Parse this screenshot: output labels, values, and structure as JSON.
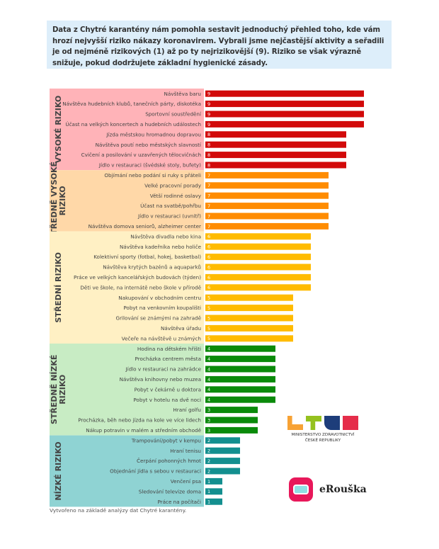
{
  "intro_text": "Data z Chytré karantény nám pomohla sestavit jednoduchý přehled toho, kde vám hrozí nejvyšší riziko nákazy koronavirem. Vybrali jsme nejčastější aktivity a seřadili je od nejméně rizikových (1) až po ty nejrizikovější (9). Riziko se však výrazně snižuje, pokud dodržujete základní hygienické zásady.",
  "footer_note": "Vytvořeno na základě analýzy dat Chytré karantény.",
  "logos": {
    "ministry": "MINISTERSTVO ZDRAVOTNICTVÍ ČESKÉ REPUBLIKY",
    "ministry_line1": "MINISTERSTVO ZDRAVOTNICTVÍ",
    "ministry_line2": "ČESKÉ REPUBLIKY",
    "app_name": "eRouška"
  },
  "chart_data": {
    "type": "bar",
    "orientation": "horizontal",
    "title": "",
    "xlabel": "",
    "ylabel": "",
    "xlim": [
      0,
      9
    ],
    "grid": false,
    "groups": [
      {
        "name": "VYSOKÉ RIZIKO",
        "name_lines": [
          "VYSOKÉ RIZIKO"
        ],
        "bg_color": "#ffb3b8",
        "bar_color": "#d20a0a",
        "items": [
          {
            "label": "Návštěva baru",
            "value": 9
          },
          {
            "label": "Návštěva hudebních klubů, tanečních párty, diskotéka",
            "value": 9
          },
          {
            "label": "Sportovní soustředění",
            "value": 9
          },
          {
            "label": "Účast na velkých koncertech a hudebních událostech",
            "value": 9
          },
          {
            "label": "Jízda městskou hromadnou dopravou",
            "value": 8
          },
          {
            "label": "Návštěva poutí nebo městských slavností",
            "value": 8
          },
          {
            "label": "Cvičení a posilování v uzavřených tělocvičnách",
            "value": 8
          },
          {
            "label": "Jídlo v restauraci (švédské stoly, bufety)",
            "value": 8
          }
        ]
      },
      {
        "name": "STŘEDNĚ VYSOKÉ RIZIKO",
        "name_lines": [
          "STŘEDNĚ VYSOKÉ",
          "RIZIKO"
        ],
        "bg_color": "#ffd8a8",
        "bar_color": "#ff8c00",
        "items": [
          {
            "label": "Objímání nebo podání si ruky s přáteli",
            "value": 7
          },
          {
            "label": "Velké pracovní porady",
            "value": 7
          },
          {
            "label": "Větší rodinné oslavy",
            "value": 7
          },
          {
            "label": "Účast na svatbě/pohřbu",
            "value": 7
          },
          {
            "label": "Jídlo v restauraci (uvnitř)",
            "value": 7
          },
          {
            "label": "Návštěva domova seniorů, alzheimer center",
            "value": 7
          }
        ]
      },
      {
        "name": "STŘEDNÍ RIZIKO",
        "name_lines": [
          "STŘEDNÍ RIZIKO"
        ],
        "bg_color": "#fff0c4",
        "bar_color": "#ffbb00",
        "items": [
          {
            "label": "Návštěva divadla nebo kina",
            "value": 6
          },
          {
            "label": "Návštěva kadeřníka nebo holiče",
            "value": 6
          },
          {
            "label": "Kolektivní sporty (fotbal, hokej, basketbal)",
            "value": 6
          },
          {
            "label": "Návštěva krytých bazénů a aquaparků",
            "value": 6
          },
          {
            "label": "Práce ve velkých kancelářských budovách (týden)",
            "value": 6
          },
          {
            "label": "Děti ve škole, na internátě nebo škole v přírodě",
            "value": 6
          },
          {
            "label": "Nakupování v obchodním centru",
            "value": 5
          },
          {
            "label": "Pobyt na venkovním koupališti",
            "value": 5
          },
          {
            "label": "Grilování se známými na zahradě",
            "value": 5
          },
          {
            "label": "Návštěva úřadu",
            "value": 5
          },
          {
            "label": "Večeře na návštěvě u známých",
            "value": 5
          }
        ]
      },
      {
        "name": "STŘEDNĚ NÍZKÉ RIZIKO",
        "name_lines": [
          "STŘEDNĚ NÍZKÉ",
          "RIZIKO"
        ],
        "bg_color": "#c8ecc4",
        "bar_color": "#0a8a0a",
        "items": [
          {
            "label": "Hodina na dětském hřišti",
            "value": 4
          },
          {
            "label": "Procházka centrem města",
            "value": 4
          },
          {
            "label": "Jídlo v restauraci na zahrádce",
            "value": 4
          },
          {
            "label": "Návštěva knihovny nebo muzea",
            "value": 4
          },
          {
            "label": "Pobyt v čekárně u doktora",
            "value": 4
          },
          {
            "label": "Pobyt v hotelu na dvě noci",
            "value": 4
          },
          {
            "label": "Hraní golfu",
            "value": 3
          },
          {
            "label": "Procházka, běh nebo jízda na kole ve více lidech",
            "value": 3
          },
          {
            "label": "Nákup potravin v malém a středním obchodě",
            "value": 3
          }
        ]
      },
      {
        "name": "NÍZKÉ RIZIKO",
        "name_lines": [
          "NÍZKÉ RIZIKO"
        ],
        "bg_color": "#8fd3d3",
        "bar_color": "#138f8f",
        "items": [
          {
            "label": "Trampování/pobyt v kempu",
            "value": 2
          },
          {
            "label": "Hraní tenisu",
            "value": 2
          },
          {
            "label": "Čerpání pohonných hmot",
            "value": 2
          },
          {
            "label": "Objednání jídla s sebou v restauraci",
            "value": 2
          },
          {
            "label": "Venčení psa",
            "value": 1
          },
          {
            "label": "Sledování televize doma",
            "value": 1
          },
          {
            "label": "Práce na počítači",
            "value": 1
          }
        ]
      }
    ]
  }
}
